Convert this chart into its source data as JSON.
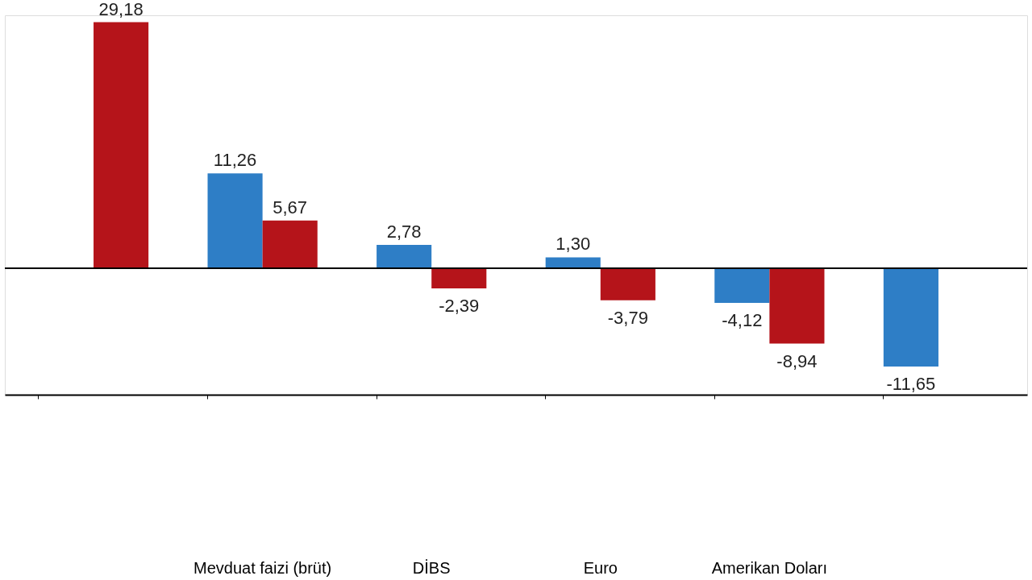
{
  "chart_data": {
    "type": "bar",
    "categories": [
      null,
      "Mevduat faizi (brüt)",
      "DİBS",
      "Euro",
      "Amerikan Doları",
      null
    ],
    "series": [
      {
        "color": "#2e7ec6",
        "values": [
          null,
          11.26,
          2.78,
          1.3,
          -4.12,
          -11.65
        ],
        "value_labels": [
          null,
          "11,26",
          "2,78",
          "1,30",
          "-4,12",
          "-11,65"
        ]
      },
      {
        "color": "#b5141a",
        "values": [
          29.18,
          5.67,
          -2.39,
          -3.79,
          -8.94,
          null
        ],
        "value_labels": [
          "29,18",
          "5,67",
          "-2,39",
          "-3,79",
          "-8,94",
          null
        ]
      }
    ],
    "grid": false,
    "legend": false
  }
}
